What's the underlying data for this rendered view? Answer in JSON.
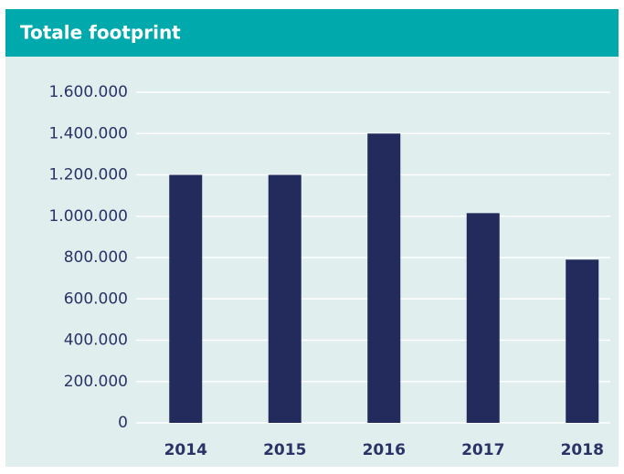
{
  "chart_data": {
    "type": "bar",
    "title": "Totale footprint",
    "categories": [
      "2014",
      "2015",
      "2016",
      "2017",
      "2018"
    ],
    "values": [
      1200000,
      1200000,
      1400000,
      1015000,
      790000
    ],
    "color": "#232a5c",
    "ylim": [
      0,
      1600000
    ],
    "yticks": [
      0,
      {
        "value": 200000,
        "label": "200.000"
      },
      {
        "value": 400000,
        "label": "400.000"
      },
      {
        "value": 600000,
        "label": "600.000"
      },
      {
        "value": 800000,
        "label": "800.000"
      },
      {
        "value": 1000000,
        "label": "1.000.000"
      },
      {
        "value": 1200000,
        "label": "1.200.000"
      },
      {
        "value": 1400000,
        "label": "1.400.000"
      },
      {
        "value": 1600000,
        "label": "1.600.000"
      }
    ],
    "grid": true
  }
}
